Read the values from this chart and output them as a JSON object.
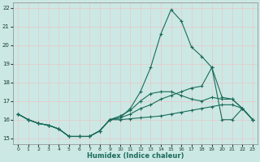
{
  "xlabel": "Humidex (Indice chaleur)",
  "background_color": "#cce8e4",
  "line_color": "#1a6b5a",
  "grid_color": "#e8c8c8",
  "xlim": [
    -0.5,
    23.5
  ],
  "ylim": [
    14.7,
    22.3
  ],
  "yticks": [
    15,
    16,
    17,
    18,
    19,
    20,
    21,
    22
  ],
  "xticks": [
    0,
    1,
    2,
    3,
    4,
    5,
    6,
    7,
    8,
    9,
    10,
    11,
    12,
    13,
    14,
    15,
    16,
    17,
    18,
    19,
    20,
    21,
    22,
    23
  ],
  "series": [
    {
      "x": [
        0,
        1,
        2,
        3,
        4,
        5,
        6,
        7,
        8,
        9,
        10,
        11,
        12,
        13,
        14,
        15,
        16,
        17,
        18,
        19,
        20,
        21,
        22,
        23
      ],
      "y": [
        16.3,
        16.0,
        15.8,
        15.7,
        15.5,
        15.1,
        15.1,
        15.1,
        15.4,
        16.0,
        16.1,
        16.6,
        17.5,
        18.8,
        20.6,
        21.9,
        21.3,
        19.9,
        19.4,
        18.8,
        16.0,
        16.0,
        16.6,
        16.0
      ]
    },
    {
      "x": [
        0,
        1,
        2,
        3,
        4,
        5,
        6,
        7,
        8,
        9,
        10,
        11,
        12,
        13,
        14,
        15,
        16,
        17,
        18,
        19,
        20,
        21,
        22,
        23
      ],
      "y": [
        16.3,
        16.0,
        15.8,
        15.7,
        15.5,
        15.1,
        15.1,
        15.1,
        15.4,
        16.0,
        16.2,
        16.5,
        17.0,
        17.4,
        17.5,
        17.5,
        17.3,
        17.1,
        17.0,
        17.2,
        17.1,
        17.1,
        16.6,
        16.0
      ]
    },
    {
      "x": [
        0,
        1,
        2,
        3,
        4,
        5,
        6,
        7,
        8,
        9,
        10,
        11,
        12,
        13,
        14,
        15,
        16,
        17,
        18,
        19,
        20,
        21,
        22,
        23
      ],
      "y": [
        16.3,
        16.0,
        15.8,
        15.7,
        15.5,
        15.1,
        15.1,
        15.1,
        15.4,
        16.0,
        16.0,
        16.05,
        16.1,
        16.15,
        16.2,
        16.3,
        16.4,
        16.5,
        16.6,
        16.7,
        16.8,
        16.8,
        16.6,
        16.0
      ]
    },
    {
      "x": [
        0,
        1,
        2,
        3,
        4,
        5,
        6,
        7,
        8,
        9,
        10,
        11,
        12,
        13,
        14,
        15,
        16,
        17,
        18,
        19,
        20,
        21,
        22,
        23
      ],
      "y": [
        16.3,
        16.0,
        15.8,
        15.7,
        15.5,
        15.1,
        15.1,
        15.1,
        15.4,
        16.0,
        16.1,
        16.3,
        16.6,
        16.8,
        17.1,
        17.3,
        17.5,
        17.7,
        17.8,
        18.8,
        17.2,
        17.1,
        16.6,
        16.0
      ]
    }
  ]
}
